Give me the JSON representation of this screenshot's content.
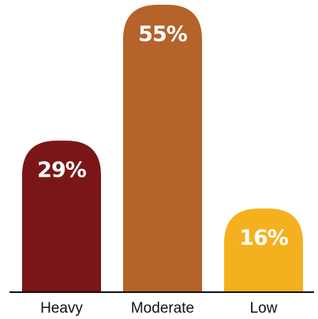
{
  "chart_data": {
    "type": "bar",
    "categories": [
      "Heavy",
      "Moderate",
      "Low"
    ],
    "values": [
      29,
      55,
      16
    ],
    "value_labels": [
      "29%",
      "55%",
      "16%"
    ],
    "colors": [
      "#7a1618",
      "#b5632a",
      "#f5b01e"
    ],
    "ylim": [
      0,
      55
    ],
    "grid": false,
    "legend": "none",
    "title": "",
    "xlabel": "",
    "ylabel": ""
  }
}
